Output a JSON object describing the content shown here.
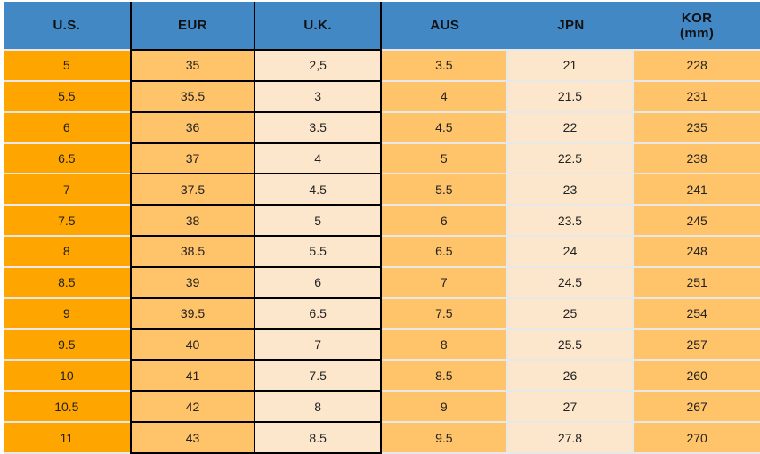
{
  "chart_data": {
    "type": "table",
    "columns": [
      {
        "key": "us",
        "label": "U.S.",
        "sublabel": ""
      },
      {
        "key": "eur",
        "label": "EUR",
        "sublabel": ""
      },
      {
        "key": "uk",
        "label": "U.K.",
        "sublabel": ""
      },
      {
        "key": "aus",
        "label": "AUS",
        "sublabel": ""
      },
      {
        "key": "jpn",
        "label": "JPN",
        "sublabel": ""
      },
      {
        "key": "kor",
        "label": "KOR",
        "sublabel": "(mm)"
      }
    ],
    "rows": [
      [
        "5",
        "35",
        "2,5",
        "3.5",
        "21",
        "228"
      ],
      [
        "5.5",
        "35.5",
        "3",
        "4",
        "21.5",
        "231"
      ],
      [
        "6",
        "36",
        "3.5",
        "4.5",
        "22",
        "235"
      ],
      [
        "6.5",
        "37",
        "4",
        "5",
        "22.5",
        "238"
      ],
      [
        "7",
        "37.5",
        "4.5",
        "5.5",
        "23",
        "241"
      ],
      [
        "7.5",
        "38",
        "5",
        "6",
        "23.5",
        "245"
      ],
      [
        "8",
        "38.5",
        "5.5",
        "6.5",
        "24",
        "248"
      ],
      [
        "8.5",
        "39",
        "6",
        "7",
        "24.5",
        "251"
      ],
      [
        "9",
        "39.5",
        "6.5",
        "7.5",
        "25",
        "254"
      ],
      [
        "9.5",
        "40",
        "7",
        "8",
        "25.5",
        "257"
      ],
      [
        "10",
        "41",
        "7.5",
        "8.5",
        "26",
        "260"
      ],
      [
        "10.5",
        "42",
        "8",
        "9",
        "27",
        "267"
      ],
      [
        "11",
        "43",
        "8.5",
        "9.5",
        "27.8",
        "270"
      ]
    ],
    "layout_hints": {
      "header_row": true,
      "black_framed_columns": [
        "eur",
        "uk"
      ],
      "grid": "light horizontal separators elsewhere"
    }
  },
  "colors": {
    "header_bg": "#4288C5",
    "col_us": "#FFA500",
    "col_light_orange": "#FFC369",
    "col_cream": "#FDE7CC",
    "border_dark": "#000000",
    "border_light": "#E8E8E8",
    "header_text": "#111111",
    "cell_text": "#222222"
  }
}
